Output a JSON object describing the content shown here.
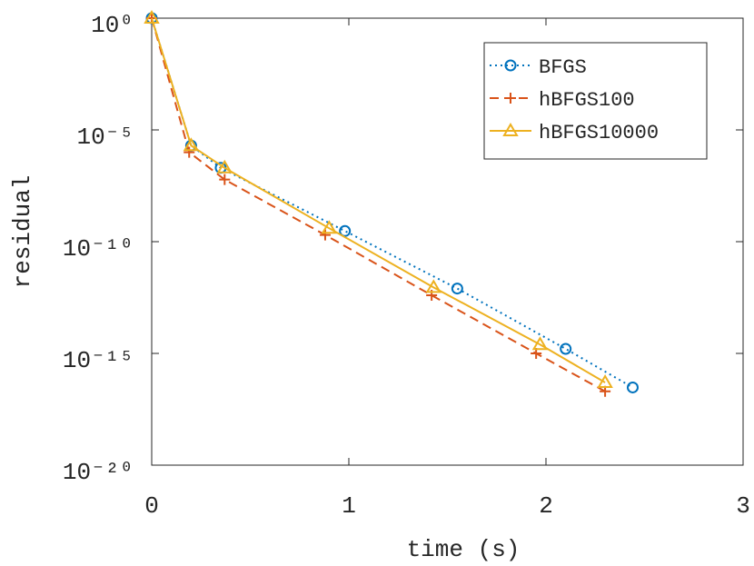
{
  "chart_data": {
    "type": "line",
    "x_label": "time (s)",
    "y_label": "residual",
    "xlim": [
      0,
      3
    ],
    "xticks": [
      0,
      1,
      2,
      3
    ],
    "ylim": [
      1e-20,
      1
    ],
    "y_scale": "log",
    "yticks": [
      {
        "value": 1e-20,
        "label": "10⁻²⁰"
      },
      {
        "value": 1e-15,
        "label": "10⁻¹⁵"
      },
      {
        "value": 1e-10,
        "label": "10⁻¹⁰"
      },
      {
        "value": 1e-05,
        "label": "10⁻⁵"
      },
      {
        "value": 1,
        "label": "10⁰"
      }
    ],
    "legend_position": "upper right",
    "series": [
      {
        "name": "BFGS",
        "color": "#0072BD",
        "line_style": "dotted",
        "marker": "circle",
        "x": [
          0,
          0.2,
          0.35,
          0.98,
          1.55,
          2.1,
          2.44
        ],
        "values": [
          1,
          2e-06,
          2e-07,
          3e-10,
          8e-13,
          1.6e-15,
          3e-17
        ]
      },
      {
        "name": "hBFGS100",
        "color": "#D95319",
        "line_style": "dashed",
        "marker": "plus",
        "x": [
          0,
          0.19,
          0.37,
          0.88,
          1.42,
          1.95,
          2.3
        ],
        "values": [
          1,
          1e-06,
          6e-08,
          2e-10,
          4e-13,
          1e-15,
          2e-17
        ]
      },
      {
        "name": "hBFGS10000",
        "color": "#EDB120",
        "line_style": "solid",
        "marker": "triangle",
        "x": [
          0,
          0.2,
          0.37,
          0.9,
          1.43,
          1.97,
          2.3
        ],
        "values": [
          1,
          2e-06,
          2e-07,
          4e-10,
          9e-13,
          2.5e-15,
          5e-17
        ]
      }
    ]
  }
}
